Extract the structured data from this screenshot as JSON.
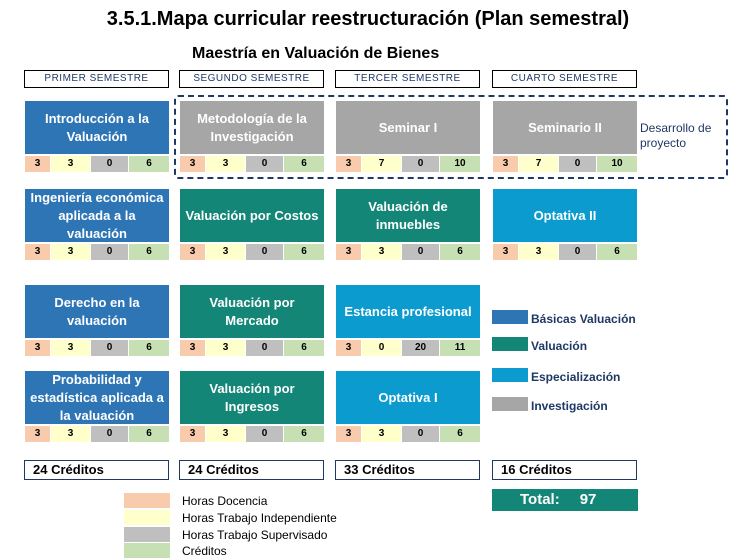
{
  "title": "3.5.1.Mapa curricular reestructuración (Plan semestral)",
  "subtitle": "Maestría en Valuación de Bienes",
  "colors": {
    "basicas": "#2e75b6",
    "valuacion": "#138677",
    "especializacion": "#0c9bcf",
    "investigacion": "#a6a6a6"
  },
  "semesters": [
    {
      "header": "PRIMER SEMESTRE",
      "credits": "24 Créditos",
      "courses": [
        {
          "name": "Introducción a la Valuación",
          "type": "basicas",
          "hours": [
            "3",
            "3",
            "0",
            "6"
          ]
        },
        {
          "name": "Ingeniería económica aplicada a la valuación",
          "type": "basicas",
          "hours": [
            "3",
            "3",
            "0",
            "6"
          ]
        },
        {
          "name": "Derecho en la valuación",
          "type": "basicas",
          "hours": [
            "3",
            "3",
            "0",
            "6"
          ]
        },
        {
          "name": "Probabilidad y estadística aplicada a la valuación",
          "type": "basicas",
          "hours": [
            "3",
            "3",
            "0",
            "6"
          ]
        }
      ]
    },
    {
      "header": "SEGUNDO SEMESTRE",
      "credits": "24 Créditos",
      "courses": [
        {
          "name": "Metodología de la Investigación",
          "type": "investigacion",
          "hours": [
            "3",
            "3",
            "0",
            "6"
          ]
        },
        {
          "name": "Valuación por Costos",
          "type": "valuacion",
          "hours": [
            "3",
            "3",
            "0",
            "6"
          ]
        },
        {
          "name": "Valuación por Mercado",
          "type": "valuacion",
          "hours": [
            "3",
            "3",
            "0",
            "6"
          ]
        },
        {
          "name": "Valuación por Ingresos",
          "type": "valuacion",
          "hours": [
            "3",
            "3",
            "0",
            "6"
          ]
        }
      ]
    },
    {
      "header": "TERCER SEMESTRE",
      "credits": "33 Créditos",
      "courses": [
        {
          "name": "Seminar I",
          "type": "investigacion",
          "hours": [
            "3",
            "7",
            "0",
            "10"
          ]
        },
        {
          "name": "Valuación de inmuebles",
          "type": "valuacion",
          "hours": [
            "3",
            "3",
            "0",
            "6"
          ]
        },
        {
          "name": "Estancia profesional",
          "type": "especializacion",
          "hours": [
            "3",
            "0",
            "20",
            "11"
          ]
        },
        {
          "name": "Optativa I",
          "type": "especializacion",
          "hours": [
            "3",
            "3",
            "0",
            "6"
          ]
        }
      ]
    },
    {
      "header": "CUARTO SEMESTRE",
      "credits": "16 Créditos",
      "courses": [
        {
          "name": "Seminario II",
          "type": "investigacion",
          "hours": [
            "3",
            "7",
            "0",
            "10"
          ]
        },
        {
          "name": "Optativa II",
          "type": "especializacion",
          "hours": [
            "3",
            "3",
            "0",
            "6"
          ]
        }
      ]
    }
  ],
  "project_label": "Desarrollo de proyecto",
  "area_legend": [
    {
      "label": "Básicas Valuación",
      "color": "#2e75b6"
    },
    {
      "label": "Valuación",
      "color": "#138677"
    },
    {
      "label": "Especialización",
      "color": "#0c9bcf"
    },
    {
      "label": "Investigación",
      "color": "#a6a6a6"
    }
  ],
  "hours_legend": [
    {
      "label": "Horas Docencia",
      "color": "#f8cbad"
    },
    {
      "label": "Horas Trabajo Independiente",
      "color": "#ffffcc"
    },
    {
      "label": "Horas Trabajo Supervisado",
      "color": "#bfbfbf"
    },
    {
      "label": "Créditos",
      "color": "#c6e0b4"
    }
  ],
  "total": {
    "label": "Total:",
    "value": "97"
  }
}
